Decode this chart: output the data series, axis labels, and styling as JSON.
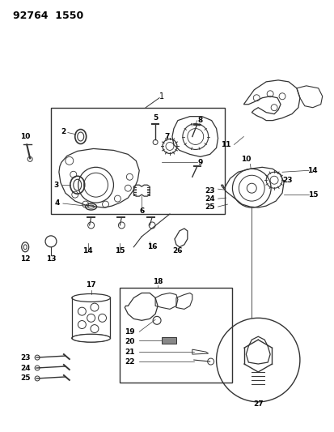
{
  "title": "92764  1550",
  "background_color": "#ffffff",
  "line_color": "#333333",
  "text_color": "#000000",
  "fig_width": 4.14,
  "fig_height": 5.33,
  "dpi": 100
}
